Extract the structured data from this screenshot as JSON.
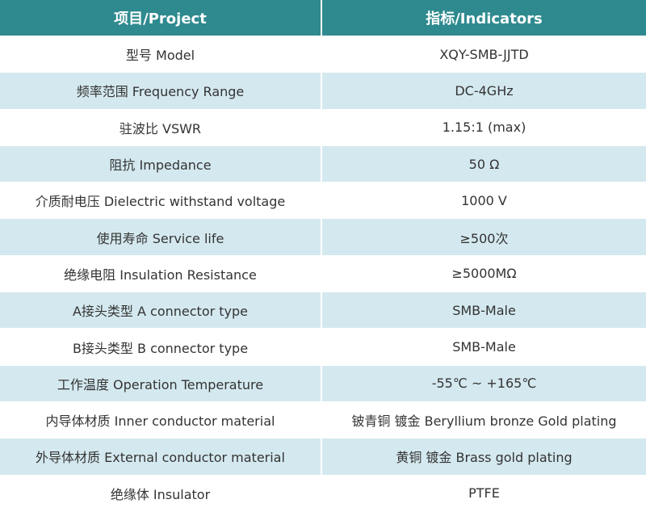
{
  "table": {
    "header": [
      "项目/Project",
      "指标/Indicators"
    ],
    "rows": [
      [
        "型号 Model",
        "XQY-SMB-JJTD"
      ],
      [
        "频率范围 Frequency Range",
        "DC-4GHz"
      ],
      [
        "驻波比 VSWR",
        "1.15:1 (max)"
      ],
      [
        "阻抗 Impedance",
        "50 Ω"
      ],
      [
        "介质耐电压 Dielectric withstand voltage",
        "1000 V"
      ],
      [
        "使用寿命 Service life",
        "≥500次"
      ],
      [
        "绝缘电阻 Insulation Resistance",
        "≥5000MΩ"
      ],
      [
        "A接头类型 A connector type",
        "SMB-Male"
      ],
      [
        "B接头类型 B connector type",
        "SMB-Male"
      ],
      [
        "工作温度 Operation Temperature",
        "-55℃ ~ +165℃"
      ],
      [
        "内导体材质 Inner conductor material",
        "铍青铜 镀金 Beryllium bronze Gold plating"
      ],
      [
        "外导体材质 External conductor material",
        "黄铜 镀金 Brass gold plating"
      ],
      [
        "绝缘体 Insulator",
        "PTFE"
      ]
    ]
  }
}
